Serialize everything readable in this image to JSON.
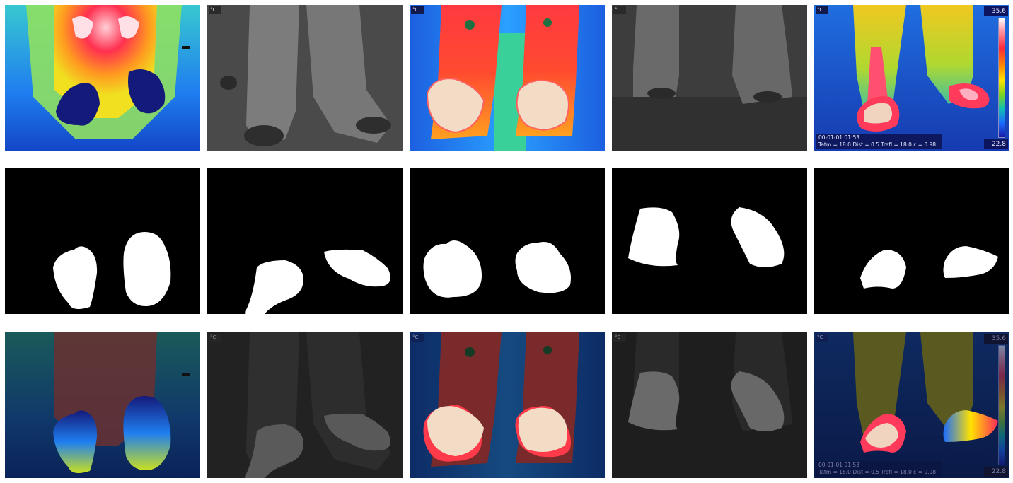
{
  "thermal_ui": {
    "unit_label": "°C",
    "scale_max": "35.6",
    "scale_min": "22.8",
    "timestamp": "00-01-01 01:53",
    "params": "Tatm = 18.0  Dist = 0.5  Trefl = 18.0  ε = 0.98"
  },
  "colors": {
    "background": "#ffffff",
    "mask_background": "#000000",
    "mask_foreground": "#ffffff",
    "palette_hot": "#ff2a3a",
    "palette_cold": "#1a1aa8"
  }
}
